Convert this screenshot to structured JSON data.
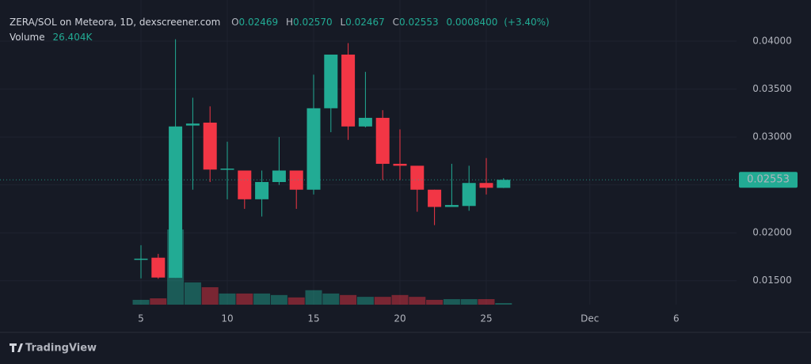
{
  "chart_data": {
    "type": "candlestick",
    "title": "ZERA/SOL on Meteora, 1D, dexscreener.com",
    "header": {
      "open": "O",
      "high": "H",
      "low": "L",
      "close": "C",
      "change": {
        "value": 0.00084,
        "label": "0.0008400"
      },
      "change_pct": {
        "value": 3.4,
        "label": "(+3.40%)"
      },
      "volume": "Volume"
    },
    "last_value_labels": {
      "open": "0.02469",
      "high": "0.02570",
      "low": "0.02467",
      "close": "0.02553",
      "volume": "26.404K"
    },
    "brand": "TradingView",
    "up_color": "#22ab94",
    "down_color": "#f23645",
    "categories": [
      "5",
      null,
      null,
      null,
      null,
      "10",
      null,
      null,
      null,
      null,
      "15",
      null,
      null,
      null,
      null,
      "20",
      null,
      null,
      null,
      null,
      "25",
      null,
      null,
      null,
      null,
      null,
      "Dec",
      null,
      null,
      null,
      null,
      "6",
      null,
      null,
      null
    ],
    "open": [
      0.0173,
      0.0174,
      0.0153,
      0.0312,
      0.0315,
      0.0266,
      0.0265,
      0.0235,
      0.0253,
      0.0265,
      0.0245,
      0.033,
      0.0386,
      0.0311,
      0.032,
      0.0272,
      0.027,
      0.0245,
      0.0227,
      0.0228,
      0.0252,
      0.02469,
      null,
      null,
      null,
      null,
      null,
      null,
      null,
      null,
      null,
      null,
      null,
      null,
      null
    ],
    "high": [
      0.0187,
      0.0178,
      0.0402,
      0.0341,
      0.0332,
      0.0295,
      0.0265,
      0.0265,
      0.03,
      0.0265,
      0.0365,
      0.0386,
      0.0398,
      0.0368,
      0.0328,
      0.0308,
      0.027,
      0.0245,
      0.0272,
      0.027,
      0.0278,
      0.0257,
      null,
      null,
      null,
      null,
      null,
      null,
      null,
      null,
      null,
      null,
      null,
      null,
      null
    ],
    "low": [
      0.01525,
      0.0152,
      0.0153,
      0.0245,
      0.0253,
      0.0235,
      0.0225,
      0.0217,
      0.025,
      0.0225,
      0.024,
      0.0305,
      0.0297,
      0.031,
      0.0255,
      0.0255,
      0.0222,
      0.0208,
      0.0227,
      0.0223,
      0.024,
      0.02467,
      null,
      null,
      null,
      null,
      null,
      null,
      null,
      null,
      null,
      null,
      null,
      null,
      null
    ],
    "close": [
      0.0173,
      0.01533,
      0.0311,
      0.0314,
      0.0266,
      0.0267,
      0.0235,
      0.0253,
      0.0265,
      0.0245,
      0.033,
      0.0386,
      0.0311,
      0.032,
      0.0272,
      0.027,
      0.0245,
      0.0227,
      0.0229,
      0.0252,
      0.0247,
      0.02553,
      null,
      null,
      null,
      null,
      null,
      null,
      null,
      null,
      null,
      null,
      null,
      null,
      null
    ],
    "volume": [
      80000,
      105000,
      1250000,
      370000,
      290000,
      185000,
      185000,
      185000,
      160000,
      120000,
      240000,
      185000,
      160000,
      130000,
      130000,
      160000,
      130000,
      80000,
      92000,
      92000,
      92000,
      26404,
      null,
      null,
      null,
      null,
      null,
      null,
      null,
      null,
      null,
      null,
      null,
      null,
      null
    ],
    "ylim": [
      0.0125,
      0.0443
    ],
    "yticks": [
      {
        "value": 0.015,
        "label": "0.01500"
      },
      {
        "value": 0.02,
        "label": "0.02000"
      },
      {
        "value": 0.025,
        "label": "0.02500"
      },
      {
        "value": 0.03,
        "label": "0.03000"
      },
      {
        "value": 0.035,
        "label": "0.03500"
      },
      {
        "value": 0.04,
        "label": "0.04000"
      }
    ],
    "grid": true
  }
}
